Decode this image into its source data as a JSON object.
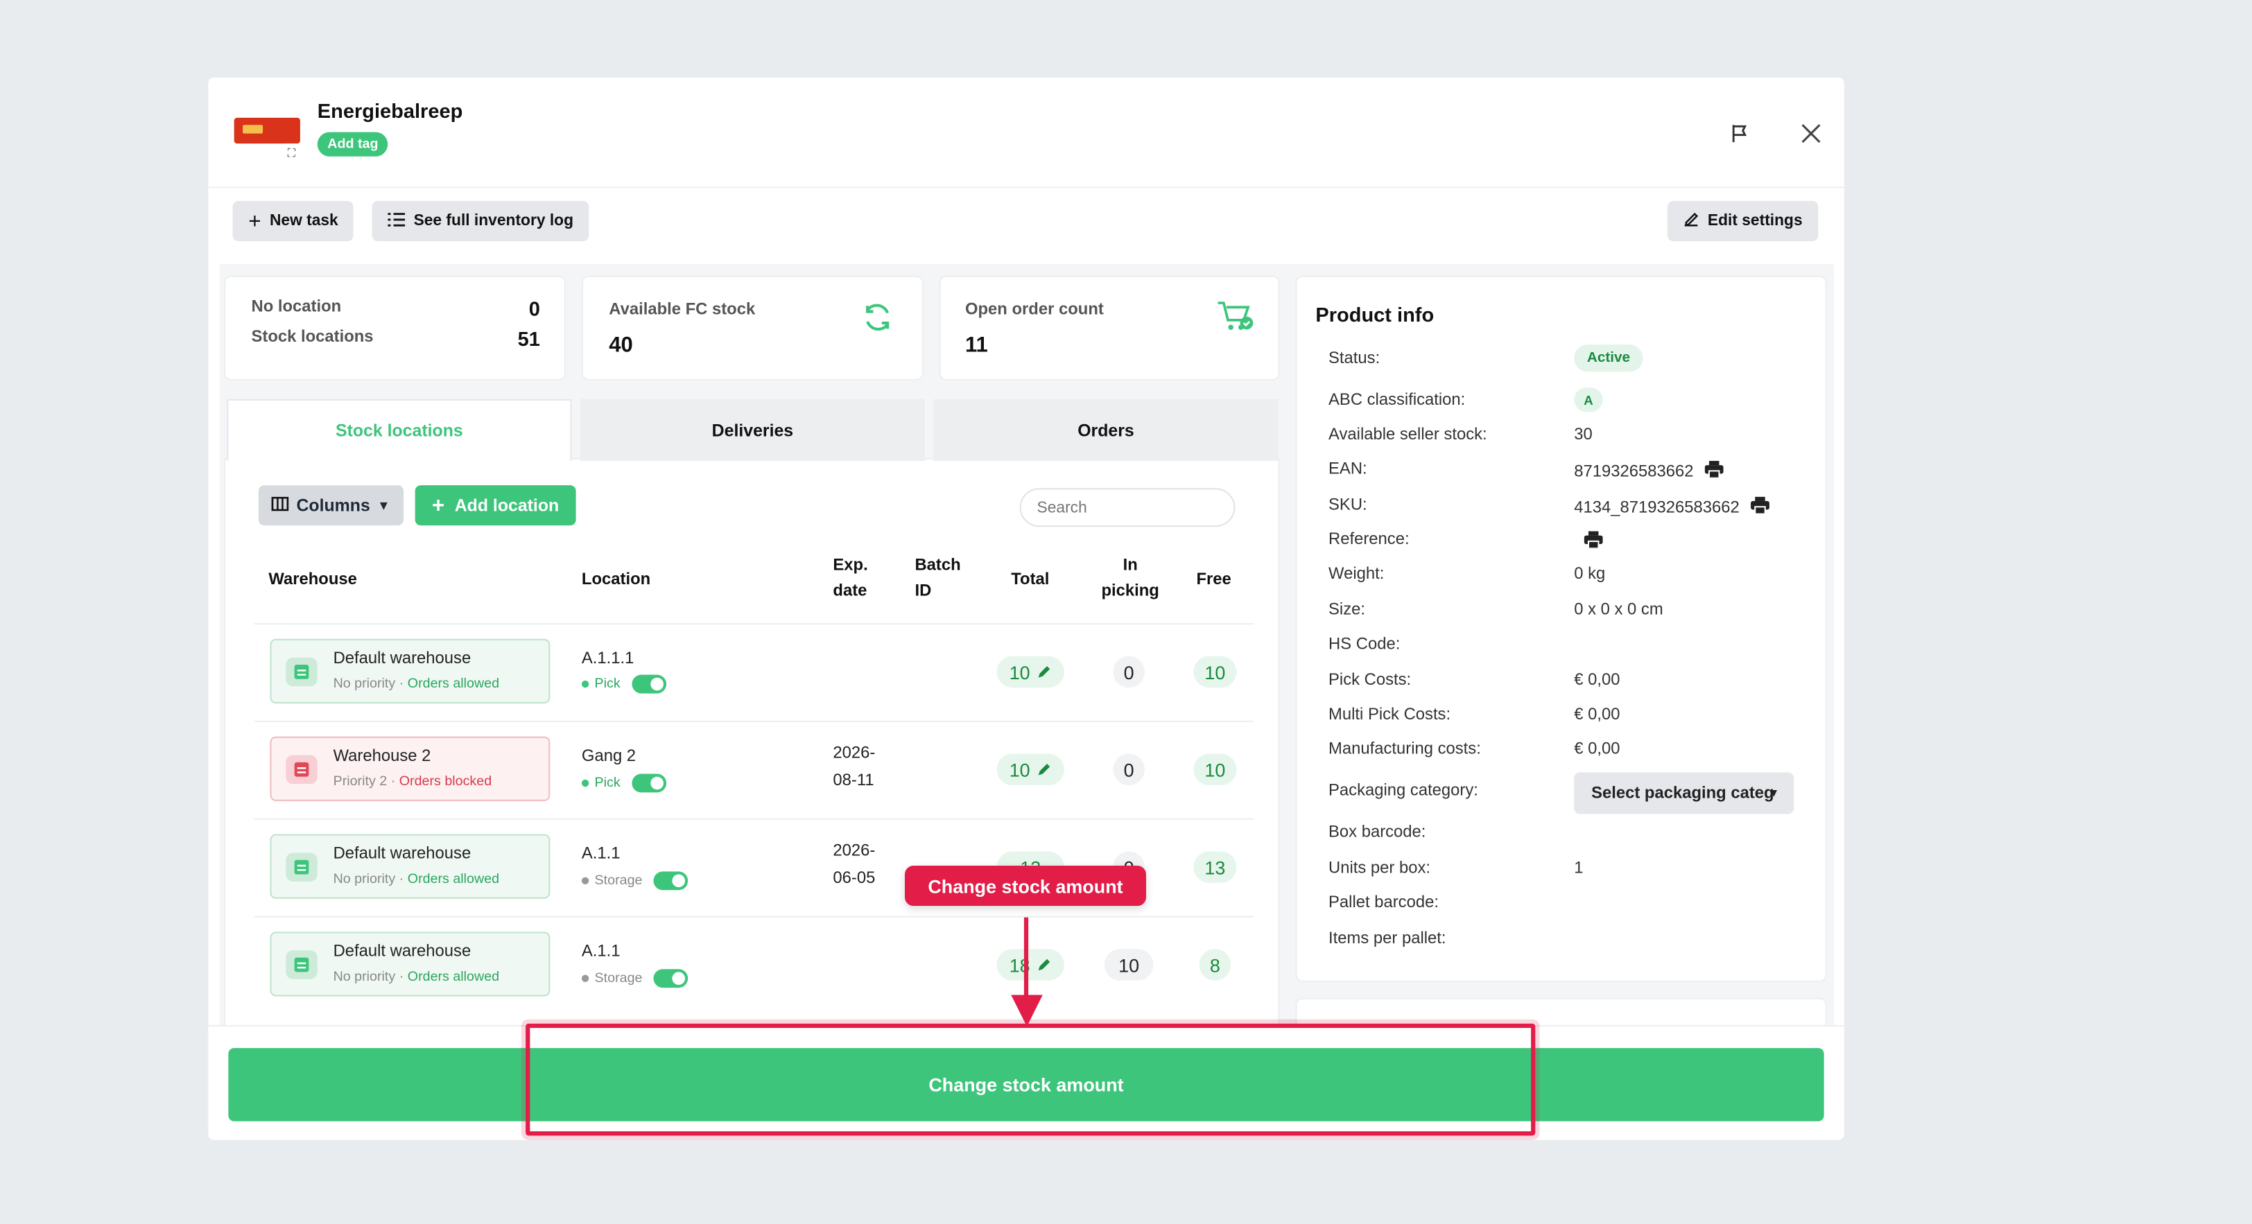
{
  "product": {
    "title": "Energiebalreep",
    "add_tag": "Add tag"
  },
  "toolbar": {
    "new_task": "New task",
    "inventory_log": "See full inventory log",
    "edit_settings": "Edit settings"
  },
  "summary": {
    "no_location_label": "No location",
    "no_location_value": "0",
    "stock_locations_label": "Stock locations",
    "stock_locations_value": "51",
    "fc_label": "Available FC stock",
    "fc_value": "40",
    "orders_label": "Open order count",
    "orders_value": "11"
  },
  "tabs": [
    "Stock locations",
    "Deliveries",
    "Orders"
  ],
  "table_controls": {
    "columns": "Columns",
    "add_location": "Add location",
    "search_placeholder": "Search"
  },
  "columns": {
    "warehouse": "Warehouse",
    "location": "Location",
    "exp1": "Exp.",
    "exp2": "date",
    "batch1": "Batch",
    "batch2": "ID",
    "total": "Total",
    "inpick1": "In",
    "inpick2": "picking",
    "free": "Free"
  },
  "rows": [
    {
      "warehouse": "Default warehouse",
      "priority": "No priority",
      "orders": "Orders allowed",
      "location": "A.1.1.1",
      "type": "Pick",
      "exp1": "",
      "exp2": "",
      "total": "10",
      "in_picking": "0",
      "free": "10"
    },
    {
      "warehouse": "Warehouse 2",
      "priority": "Priority 2",
      "orders": "Orders blocked",
      "location": "Gang 2",
      "type": "Pick",
      "exp1": "2026-",
      "exp2": "08-11",
      "total": "10",
      "in_picking": "0",
      "free": "10"
    },
    {
      "warehouse": "Default warehouse",
      "priority": "No priority",
      "orders": "Orders allowed",
      "location": "A.1.1",
      "type": "Storage",
      "exp1": "2026-",
      "exp2": "06-05",
      "total": "13",
      "in_picking": "0",
      "free": "13"
    },
    {
      "warehouse": "Default warehouse",
      "priority": "No priority",
      "orders": "Orders allowed",
      "location": "A.1.1",
      "type": "Storage",
      "exp1": "",
      "exp2": "",
      "total": "18",
      "in_picking": "10",
      "free": "8"
    }
  ],
  "product_info": {
    "title": "Product info",
    "status_label": "Status:",
    "status_value": "Active",
    "abc_label": "ABC classification:",
    "abc_value": "A",
    "seller_stock_label": "Available seller stock:",
    "seller_stock_value": "30",
    "ean_label": "EAN:",
    "ean_value": "8719326583662",
    "sku_label": "SKU:",
    "sku_value": "4134_8719326583662",
    "reference_label": "Reference:",
    "weight_label": "Weight:",
    "weight_value": "0 kg",
    "size_label": "Size:",
    "size_value": "0 x 0 x 0 cm",
    "hs_label": "HS Code:",
    "pick_costs_label": "Pick Costs:",
    "pick_costs_value": "€ 0,00",
    "multi_pick_label": "Multi Pick Costs:",
    "multi_pick_value": "€ 0,00",
    "manufacturing_label": "Manufacturing costs:",
    "manufacturing_value": "€ 0,00",
    "packaging_label": "Packaging category:",
    "packaging_value": "Select packaging categ",
    "box_barcode_label": "Box barcode:",
    "units_per_box_label": "Units per box:",
    "units_per_box_value": "1",
    "pallet_barcode_label": "Pallet barcode:",
    "items_per_pallet_label": "Items per pallet:"
  },
  "cta": {
    "label": "Change stock amount"
  },
  "annotation": {
    "callout": "Change stock amount"
  },
  "colors": {
    "brand_green": "#3ec57c",
    "highlight_red": "#e11d48"
  }
}
